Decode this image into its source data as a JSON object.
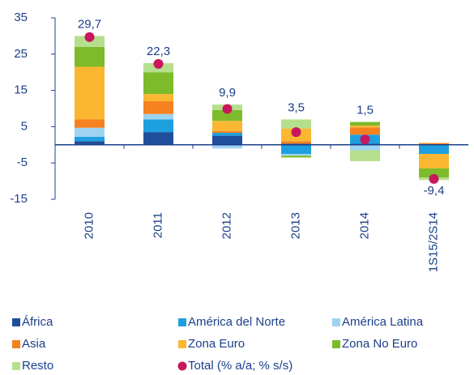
{
  "chart_data": {
    "type": "stacked_bar",
    "categories": [
      "2010",
      "2011",
      "2012",
      "2013",
      "2014",
      "1S15/2S14"
    ],
    "series": [
      {
        "name": "África",
        "color": "#1f4e9a",
        "values": [
          1.0,
          3.5,
          2.5,
          0.3,
          0.3,
          0
        ]
      },
      {
        "name": "América del Norte",
        "color": "#1ea0e0",
        "values": [
          1.2,
          3.5,
          0.8,
          -2.5,
          2.5,
          -2.5
        ]
      },
      {
        "name": "América Latina",
        "color": "#9fd3f2",
        "values": [
          2.5,
          1.5,
          -1.0,
          -0.5,
          -1.5,
          0
        ]
      },
      {
        "name": "Asia",
        "color": "#f5821f",
        "values": [
          2.3,
          3.5,
          0.5,
          0.7,
          2.0,
          0.5
        ]
      },
      {
        "name": "Zona Euro",
        "color": "#fbb731",
        "values": [
          14.5,
          2.0,
          2.8,
          3.5,
          0.5,
          -4.0
        ]
      },
      {
        "name": "Zona No Euro",
        "color": "#7dbb2b",
        "values": [
          5.5,
          6.0,
          3.0,
          -0.5,
          1.0,
          -2.5
        ]
      },
      {
        "name": "Resto",
        "color": "#b5df8d",
        "values": [
          3.0,
          2.5,
          1.5,
          2.5,
          -3.0,
          -0.7
        ]
      }
    ],
    "total": {
      "name": "Total (% a/a; % s/s)",
      "color": "#c8175d",
      "values": [
        29.7,
        22.3,
        9.9,
        3.5,
        1.5,
        -9.4
      ],
      "value_labels": [
        "29,7",
        "22,3",
        "9,9",
        "3,5",
        "1,5",
        "-9,4"
      ]
    },
    "ylim": [
      -15,
      35
    ],
    "yticks": [
      -15,
      -5,
      5,
      15,
      25,
      35
    ]
  }
}
